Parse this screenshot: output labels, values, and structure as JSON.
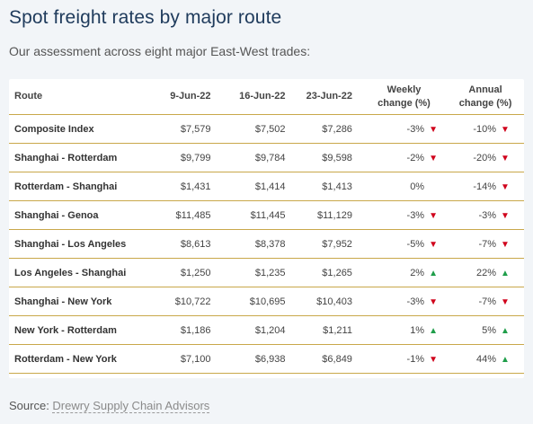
{
  "title": "Spot freight rates by major route",
  "subtitle": "Our assessment across eight major East-West trades:",
  "table": {
    "headers": {
      "route": "Route",
      "d1": "9-Jun-22",
      "d2": "16-Jun-22",
      "d3": "23-Jun-22",
      "weekly_line1": "Weekly",
      "weekly_line2": "change (%)",
      "annual_line1": "Annual",
      "annual_line2": "change (%)"
    },
    "rows": [
      {
        "route": "Composite Index",
        "d1": "$7,579",
        "d2": "$7,502",
        "d3": "$7,286",
        "weekly": "-3%",
        "weekly_dir": "down",
        "annual": "-10%",
        "annual_dir": "down"
      },
      {
        "route": "Shanghai - Rotterdam",
        "d1": "$9,799",
        "d2": "$9,784",
        "d3": "$9,598",
        "weekly": "-2%",
        "weekly_dir": "down",
        "annual": "-20%",
        "annual_dir": "down"
      },
      {
        "route": "Rotterdam - Shanghai",
        "d1": "$1,431",
        "d2": "$1,414",
        "d3": "$1,413",
        "weekly": "0%",
        "weekly_dir": "none",
        "annual": "-14%",
        "annual_dir": "down"
      },
      {
        "route": "Shanghai - Genoa",
        "d1": "$11,485",
        "d2": "$11,445",
        "d3": "$11,129",
        "weekly": "-3%",
        "weekly_dir": "down",
        "annual": "-3%",
        "annual_dir": "down"
      },
      {
        "route": "Shanghai - Los Angeles",
        "d1": "$8,613",
        "d2": "$8,378",
        "d3": "$7,952",
        "weekly": "-5%",
        "weekly_dir": "down",
        "annual": "-7%",
        "annual_dir": "down"
      },
      {
        "route": "Los Angeles - Shanghai",
        "d1": "$1,250",
        "d2": "$1,235",
        "d3": "$1,265",
        "weekly": "2%",
        "weekly_dir": "up",
        "annual": "22%",
        "annual_dir": "up"
      },
      {
        "route": "Shanghai - New York",
        "d1": "$10,722",
        "d2": "$10,695",
        "d3": "$10,403",
        "weekly": "-3%",
        "weekly_dir": "down",
        "annual": "-7%",
        "annual_dir": "down"
      },
      {
        "route": "New York - Rotterdam",
        "d1": "$1,186",
        "d2": "$1,204",
        "d3": "$1,211",
        "weekly": "1%",
        "weekly_dir": "up",
        "annual": "5%",
        "annual_dir": "up"
      },
      {
        "route": "Rotterdam - New York",
        "d1": "$7,100",
        "d2": "$6,938",
        "d3": "$6,849",
        "weekly": "-1%",
        "weekly_dir": "down",
        "annual": "44%",
        "annual_dir": "up"
      }
    ]
  },
  "source": {
    "prefix": "Source: ",
    "link_text": "Drewry Supply Chain Advisors"
  },
  "colors": {
    "title": "#1f3b5c",
    "rule": "#c9a84a",
    "down": "#d0021b",
    "up": "#1f9e4a"
  },
  "icons": {
    "down": "triangle-down-icon",
    "up": "triangle-up-icon"
  }
}
